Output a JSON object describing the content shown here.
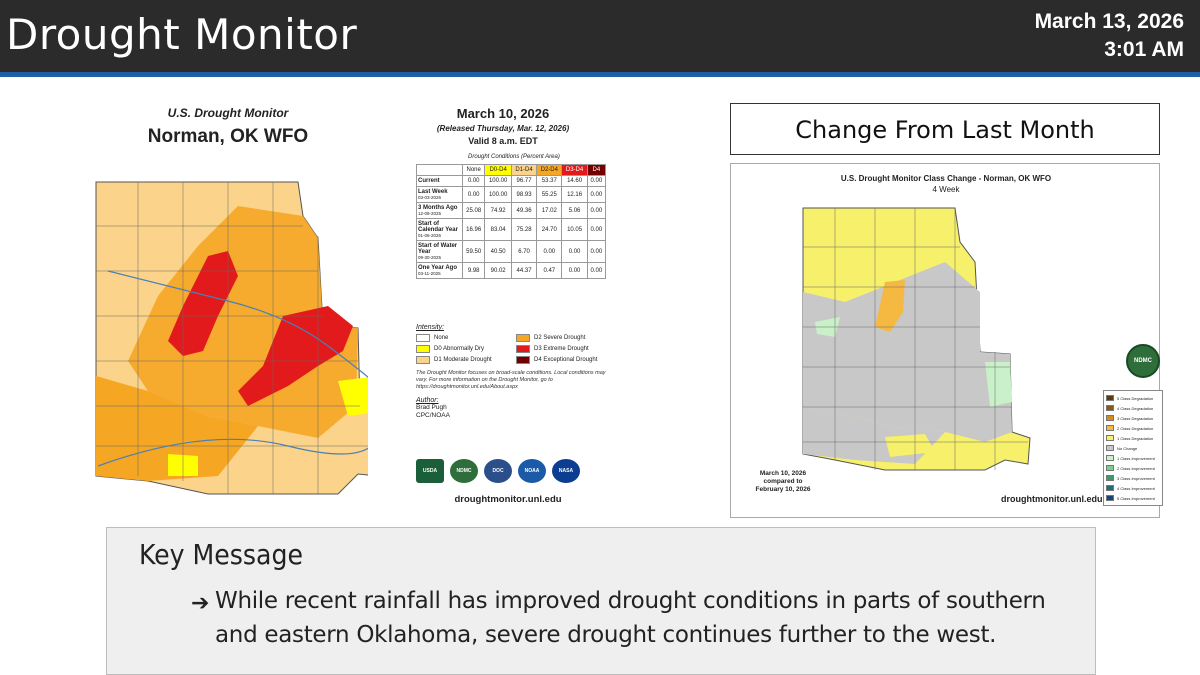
{
  "header": {
    "title": "Drought Monitor",
    "date": "March 13, 2026",
    "time": "3:01 AM"
  },
  "usdm": {
    "title": "U.S. Drought Monitor",
    "office": "Norman, OK WFO",
    "map_date": "March 10, 2026",
    "released": "(Released Thursday, Mar. 12, 2026)",
    "valid": "Valid 8 a.m. EDT",
    "table_caption": "Drought Conditions (Percent Area)",
    "columns": [
      "",
      "None",
      "D0-D4",
      "D1-D4",
      "D2-D4",
      "D3-D4",
      "D4"
    ],
    "rows": [
      {
        "label": "Current",
        "sub": "",
        "values": [
          "0.00",
          "100.00",
          "96.77",
          "53.37",
          "14.60",
          "0.00"
        ]
      },
      {
        "label": "Last Week",
        "sub": "03-03-2026",
        "values": [
          "0.00",
          "100.00",
          "98.93",
          "55.25",
          "12.16",
          "0.00"
        ]
      },
      {
        "label": "3 Months Ago",
        "sub": "12-09-2025",
        "values": [
          "25.08",
          "74.92",
          "49.36",
          "17.02",
          "5.06",
          "0.00"
        ]
      },
      {
        "label": "Start of Calendar Year",
        "sub": "01-06-2026",
        "values": [
          "16.96",
          "83.04",
          "75.28",
          "24.70",
          "10.05",
          "0.00"
        ]
      },
      {
        "label": "Start of Water Year",
        "sub": "09-30-2025",
        "values": [
          "59.50",
          "40.50",
          "6.70",
          "0.00",
          "0.00",
          "0.00"
        ]
      },
      {
        "label": "One Year Ago",
        "sub": "03-11-2025",
        "values": [
          "9.98",
          "90.02",
          "44.37",
          "0.47",
          "0.00",
          "0.00"
        ]
      }
    ],
    "legend_heading": "Intensity:",
    "legend": [
      {
        "label": "None",
        "color": "#ffffff"
      },
      {
        "label": "D2 Severe Drought",
        "color": "#f5a623"
      },
      {
        "label": "D0 Abnormally Dry",
        "color": "#ffff00"
      },
      {
        "label": "D3 Extreme Drought",
        "color": "#e31a1c"
      },
      {
        "label": "D1 Moderate Drought",
        "color": "#fbd38a"
      },
      {
        "label": "D4 Exceptional Drought",
        "color": "#730000"
      }
    ],
    "note": "The Drought Monitor focuses on broad-scale conditions. Local conditions may vary. For more information on the Drought Monitor, go to https://droughtmonitor.unl.edu/About.aspx",
    "author_heading": "Author:",
    "author_name": "Brad Pugh",
    "author_org": "CPC/NOAA",
    "logos": [
      "USDA",
      "NDMC",
      "DOC",
      "NOAA",
      "NASA"
    ],
    "url": "droughtmonitor.unl.edu"
  },
  "change": {
    "box_title": "Change From Last Month",
    "map_title": "U.S. Drought Monitor Class Change - Norman, OK WFO",
    "map_sub": "4 Week",
    "badge": "NDMC",
    "legend": [
      {
        "label": "5 Class Degradation",
        "color": "#5a3a12"
      },
      {
        "label": "4 Class Degradation",
        "color": "#8b5a1a"
      },
      {
        "label": "3 Class Degradation",
        "color": "#d98a1c"
      },
      {
        "label": "2 Class Degradation",
        "color": "#f5b942"
      },
      {
        "label": "1 Class Degradation",
        "color": "#f7f06a"
      },
      {
        "label": "No Change",
        "color": "#c8c8c8"
      },
      {
        "label": "1 Class Improvement",
        "color": "#c9f0c9"
      },
      {
        "label": "2 Class Improvement",
        "color": "#7ccf8a"
      },
      {
        "label": "3 Class Improvement",
        "color": "#3a9a6a"
      },
      {
        "label": "4 Class Improvement",
        "color": "#1d6f73"
      },
      {
        "label": "5 Class Improvement",
        "color": "#14457a"
      }
    ],
    "compare_line1": "March 10, 2026",
    "compare_line2": "compared to",
    "compare_line3": "February 10, 2026",
    "url": "droughtmonitor.unl.edu"
  },
  "key": {
    "heading": "Key Message",
    "bullet": "➔",
    "text": "While recent rainfall has improved drought conditions in parts of southern and eastern Oklahoma, severe drought continues further to the west."
  }
}
